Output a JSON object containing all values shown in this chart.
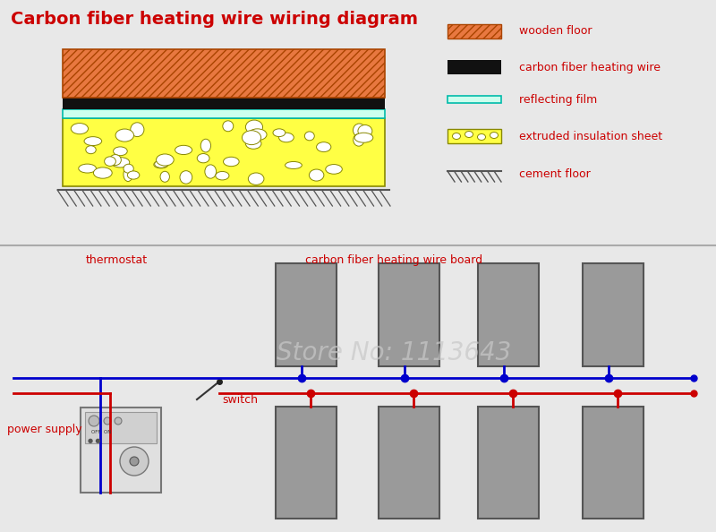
{
  "title": "Carbon fiber heating wire wiring diagram",
  "title_color": "#cc0000",
  "bg_color": "#e8e8e8",
  "panel_bg": "#ffffff",
  "label_color": "#cc0000",
  "watermark": "Store No: 1113643",
  "watermark_color": "#c8c8c8",
  "legend_labels": [
    "wooden floor",
    "carbon fiber heating wire",
    "reflecting film",
    "extruded insulation sheet",
    "cement floor"
  ],
  "wood_color": "#e87840",
  "wood_hatch_color": "#aa4400",
  "black_color": "#111111",
  "reflect_fc": "#ccffee",
  "reflect_ec": "#00bbaa",
  "insul_color": "#ffff44",
  "insul_ec": "#888800",
  "cement_color": "#555555",
  "gray_board": "#9a9a9a",
  "blue_wire": "#0000cc",
  "red_wire": "#cc0000"
}
